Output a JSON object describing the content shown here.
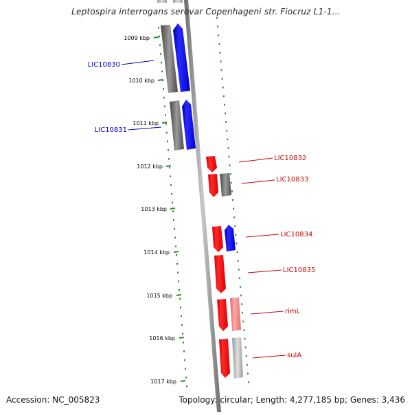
{
  "title": "Leptospira interrogans serovar Copenhageni str. Fiocruz L1-1...",
  "footer": {
    "accession": "Accession: NC_005823",
    "topology": "Topology: circular; Length: 4,277,185 bp; Genes: 3,436"
  },
  "scale_labels": [
    "1009 kbp",
    "1010 kbp",
    "1011 kbp",
    "1012 kbp",
    "1013 kbp",
    "1014 kbp",
    "1015 kbp",
    "1016 kbp",
    "1017 kbp"
  ],
  "gene_labels": [
    {
      "name": "LIC10830",
      "side": "left",
      "color": "#0000cc"
    },
    {
      "name": "LIC10831",
      "side": "left",
      "color": "#0000cc"
    },
    {
      "name": "LIC10832",
      "side": "right",
      "color": "#cc0000"
    },
    {
      "name": "LIC10833",
      "side": "right",
      "color": "#cc0000"
    },
    {
      "name": "LIC10834",
      "side": "right",
      "color": "#cc0000"
    },
    {
      "name": "LIC10835",
      "side": "right",
      "color": "#cc0000"
    },
    {
      "name": "rimL",
      "side": "right",
      "color": "#cc0000"
    },
    {
      "name": "sulA",
      "side": "right",
      "color": "#cc0000"
    }
  ],
  "colors": {
    "forward_cds": "#0000ee",
    "reverse_cds": "#ee0000",
    "reverse_cds_light": "#ee7777",
    "orf_dark": "#555555",
    "orf_light": "#aaaaaa",
    "ticks": "#2e8b2e",
    "backbone": "#888888"
  }
}
